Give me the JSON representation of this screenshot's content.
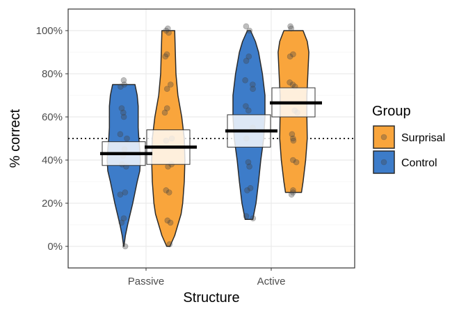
{
  "chart_data": {
    "type": "violin",
    "title": "",
    "xlabel": "Structure",
    "ylabel": "% correct",
    "categories": [
      "Passive",
      "Active"
    ],
    "ylim": [
      -0.1,
      1.1
    ],
    "y_ticks": [
      0,
      0.2,
      0.4,
      0.6,
      0.8,
      1.0
    ],
    "y_tick_labels": [
      "0%",
      "20%",
      "40%",
      "60%",
      "80%",
      "100%"
    ],
    "reference_line": 0.5,
    "grid": true,
    "legend": {
      "title": "Group",
      "placement": "right",
      "entries": [
        "Surprisal",
        "Control"
      ]
    },
    "series": [
      {
        "name": "Control",
        "color": "#3D7CC9",
        "groups": [
          {
            "category": "Passive",
            "mean": 0.43,
            "ci": [
              0.375,
              0.485
            ],
            "range": [
              0.0,
              0.75
            ],
            "density": [
              [
                0.0,
                0.005
              ],
              [
                0.05,
                0.05
              ],
              [
                0.1,
                0.12
              ],
              [
                0.15,
                0.2
              ],
              [
                0.2,
                0.28
              ],
              [
                0.25,
                0.35
              ],
              [
                0.3,
                0.42
              ],
              [
                0.35,
                0.5
              ],
              [
                0.4,
                0.52
              ],
              [
                0.45,
                0.5
              ],
              [
                0.5,
                0.47
              ],
              [
                0.55,
                0.45
              ],
              [
                0.6,
                0.45
              ],
              [
                0.65,
                0.45
              ],
              [
                0.7,
                0.42
              ],
              [
                0.75,
                0.35
              ]
            ],
            "points": [
              0.77,
              0.75,
              0.74,
              0.64,
              0.62,
              0.6,
              0.52,
              0.5,
              0.45,
              0.42,
              0.38,
              0.37,
              0.25,
              0.24,
              0.13,
              0.11,
              0.0
            ]
          },
          {
            "category": "Active",
            "mean": 0.535,
            "ci": [
              0.46,
              0.61
            ],
            "range": [
              0.125,
              1.0
            ],
            "density": [
              [
                0.125,
                0.12
              ],
              [
                0.2,
                0.22
              ],
              [
                0.3,
                0.3
              ],
              [
                0.4,
                0.37
              ],
              [
                0.5,
                0.46
              ],
              [
                0.6,
                0.5
              ],
              [
                0.7,
                0.5
              ],
              [
                0.8,
                0.42
              ],
              [
                0.9,
                0.3
              ],
              [
                0.95,
                0.2
              ],
              [
                1.0,
                0.05
              ]
            ],
            "points": [
              1.02,
              1.0,
              0.88,
              0.86,
              0.77,
              0.75,
              0.73,
              0.65,
              0.63,
              0.55,
              0.5,
              0.39,
              0.37,
              0.27,
              0.26,
              0.14,
              0.13
            ]
          }
        ]
      },
      {
        "name": "Surprisal",
        "color": "#F9A53C",
        "groups": [
          {
            "category": "Passive",
            "mean": 0.46,
            "ci": [
              0.38,
              0.54
            ],
            "range": [
              0.0,
              1.0
            ],
            "density": [
              [
                0.0,
                0.05
              ],
              [
                0.05,
                0.2
              ],
              [
                0.1,
                0.3
              ],
              [
                0.15,
                0.4
              ],
              [
                0.2,
                0.45
              ],
              [
                0.3,
                0.5
              ],
              [
                0.4,
                0.52
              ],
              [
                0.5,
                0.5
              ],
              [
                0.6,
                0.42
              ],
              [
                0.7,
                0.3
              ],
              [
                0.8,
                0.24
              ],
              [
                0.9,
                0.22
              ],
              [
                1.0,
                0.2
              ]
            ],
            "points": [
              1.01,
              1.0,
              0.99,
              0.89,
              0.88,
              0.75,
              0.73,
              0.64,
              0.62,
              0.5,
              0.49,
              0.38,
              0.37,
              0.26,
              0.25,
              0.12,
              0.11,
              0.01
            ]
          },
          {
            "category": "Active",
            "mean": 0.665,
            "ci": [
              0.6,
              0.735
            ],
            "range": [
              0.25,
              1.0
            ],
            "density": [
              [
                0.25,
                0.25
              ],
              [
                0.3,
                0.3
              ],
              [
                0.4,
                0.38
              ],
              [
                0.5,
                0.43
              ],
              [
                0.6,
                0.42
              ],
              [
                0.7,
                0.42
              ],
              [
                0.8,
                0.45
              ],
              [
                0.9,
                0.48
              ],
              [
                0.95,
                0.43
              ],
              [
                1.0,
                0.3
              ]
            ],
            "points": [
              1.02,
              1.01,
              0.89,
              0.88,
              0.76,
              0.75,
              0.74,
              0.63,
              0.62,
              0.52,
              0.5,
              0.49,
              0.4,
              0.39,
              0.26,
              0.25,
              0.24
            ]
          }
        ]
      }
    ]
  }
}
